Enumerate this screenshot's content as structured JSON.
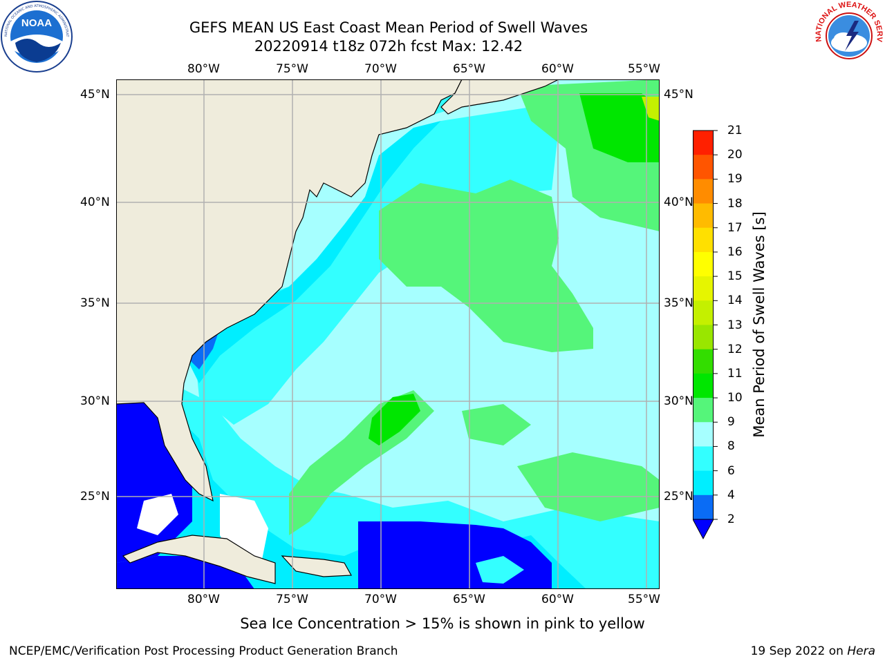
{
  "header": {
    "title_line1": "GEFS MEAN US East Coast Mean Period of Swell Waves",
    "title_line2": "20220914 t18z 072h fcst   Max: 12.42"
  },
  "logos": {
    "noaa": {
      "text": "NOAA",
      "ring_text": "NATIONAL OCEANIC AND ATMOSPHERIC ADMINISTRATION · U.S. DEPARTMENT OF COMMERCE"
    },
    "nws": {
      "ring_text": "NATIONAL WEATHER SERVICE"
    }
  },
  "map": {
    "lon_labels_top": [
      "80°W",
      "75°W",
      "70°W",
      "65°W",
      "60°W",
      "55°W"
    ],
    "lon_labels_bottom": [
      "80°W",
      "75°W",
      "70°W",
      "65°W",
      "60°W",
      "55°W"
    ],
    "lat_labels_left": [
      "45°N",
      "40°N",
      "35°N",
      "30°N",
      "25°N"
    ],
    "lat_labels_right": [
      "45°N",
      "40°N",
      "35°N",
      "30°N",
      "25°N"
    ],
    "colors": {
      "land": "#efecdc",
      "ocean_default": "#a6ffff",
      "grid": "#b0b0b0",
      "coast": "#000000"
    }
  },
  "colorbar": {
    "title": "Mean Period of Swell Waves [s]",
    "labels": [
      "21",
      "20",
      "19",
      "18",
      "17",
      "16",
      "15",
      "14",
      "13",
      "12",
      "11",
      "10",
      "9",
      "8",
      "6",
      "4",
      "2"
    ],
    "levels": [
      {
        "from": 2,
        "color": "#0a6cf5"
      },
      {
        "from": 4,
        "color": "#00eeff"
      },
      {
        "from": 6,
        "color": "#33ffff"
      },
      {
        "from": 8,
        "color": "#a6ffff"
      },
      {
        "from": 9,
        "color": "#55f57a"
      },
      {
        "from": 10,
        "color": "#00e600"
      },
      {
        "from": 11,
        "color": "#33dd00"
      },
      {
        "from": 12,
        "color": "#99e600"
      },
      {
        "from": 13,
        "color": "#c4f000"
      },
      {
        "from": 14,
        "color": "#e6f500"
      },
      {
        "from": 15,
        "color": "#ffff00"
      },
      {
        "from": 16,
        "color": "#ffe000"
      },
      {
        "from": 17,
        "color": "#ffbb00"
      },
      {
        "from": 18,
        "color": "#ff8c00"
      },
      {
        "from": 19,
        "color": "#ff5500"
      },
      {
        "from": 20,
        "color": "#ff2000"
      },
      {
        "from": 21,
        "color": "#ff0000"
      }
    ],
    "under_color": "#0000ff"
  },
  "note": "Sea Ice Concentration > 15% is shown in pink to yellow",
  "footer": {
    "left": "NCEP/EMC/Verification Post Processing Product Generation Branch",
    "right_date": "19 Sep 2022 on ",
    "right_host": "Hera"
  }
}
